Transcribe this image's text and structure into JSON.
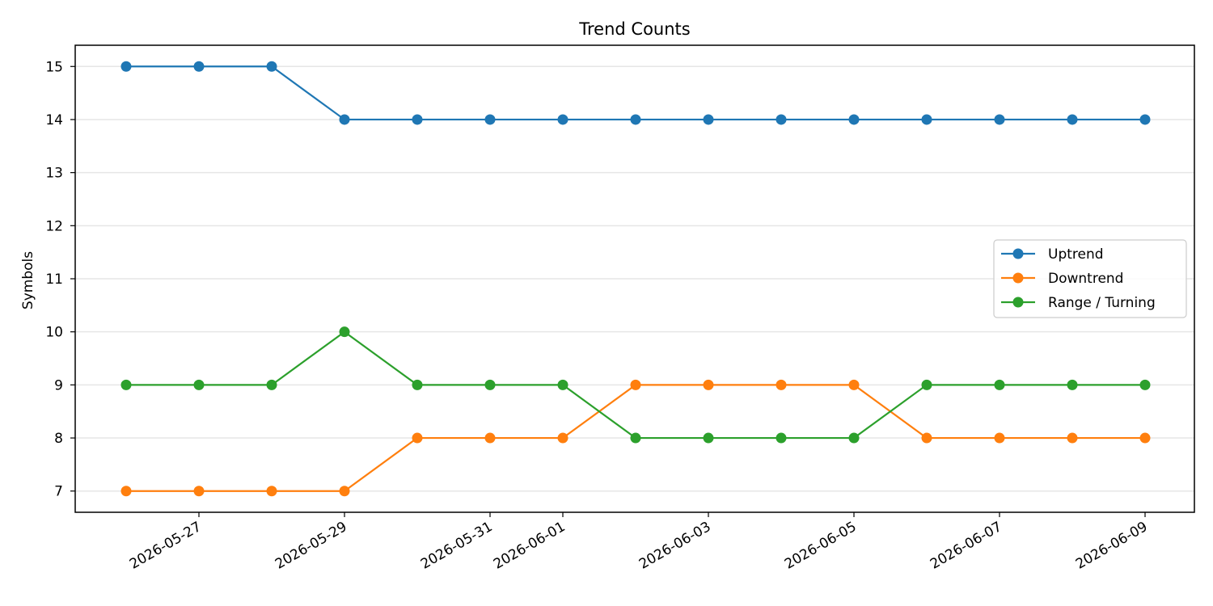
{
  "chart_data": {
    "type": "line",
    "title": "Trend Counts",
    "xlabel": "",
    "ylabel": "Symbols",
    "x": [
      "2026-05-26",
      "2026-05-27",
      "2026-05-28",
      "2026-05-29",
      "2026-05-30",
      "2026-05-31",
      "2026-06-01",
      "2026-06-02",
      "2026-06-03",
      "2026-06-04",
      "2026-06-05",
      "2026-06-06",
      "2026-06-07",
      "2026-06-08",
      "2026-06-09"
    ],
    "x_ticks": [
      "2026-05-27",
      "2026-05-29",
      "2026-05-31",
      "2026-06-01",
      "2026-06-03",
      "2026-06-05",
      "2026-06-07",
      "2026-06-09"
    ],
    "y_ticks": [
      7,
      8,
      9,
      10,
      11,
      12,
      13,
      14,
      15
    ],
    "ylim": [
      6.6,
      15.4
    ],
    "grid": "horizontal",
    "legend_position": "center-right",
    "series": [
      {
        "name": "Uptrend",
        "color": "#1f77b4",
        "values": [
          15,
          15,
          15,
          14,
          14,
          14,
          14,
          14,
          14,
          14,
          14,
          14,
          14,
          14,
          14
        ]
      },
      {
        "name": "Downtrend",
        "color": "#ff7f0e",
        "values": [
          7,
          7,
          7,
          7,
          8,
          8,
          8,
          9,
          9,
          9,
          9,
          8,
          8,
          8,
          8
        ]
      },
      {
        "name": "Range / Turning",
        "color": "#2ca02c",
        "values": [
          9,
          9,
          9,
          10,
          9,
          9,
          9,
          8,
          8,
          8,
          8,
          9,
          9,
          9,
          9
        ]
      }
    ]
  }
}
